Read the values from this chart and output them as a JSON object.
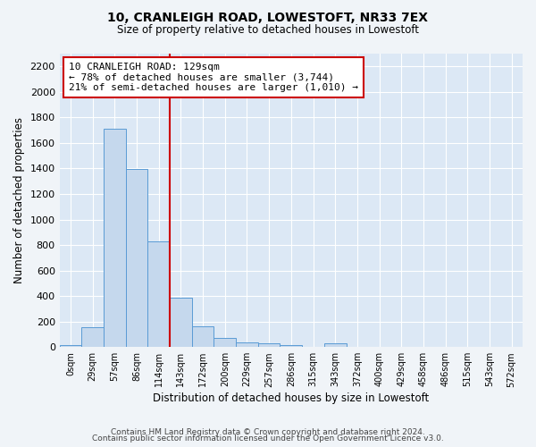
{
  "title": "10, CRANLEIGH ROAD, LOWESTOFT, NR33 7EX",
  "subtitle": "Size of property relative to detached houses in Lowestoft",
  "xlabel": "Distribution of detached houses by size in Lowestoft",
  "ylabel": "Number of detached properties",
  "bar_color": "#c5d8ed",
  "bar_edge_color": "#5a9bd5",
  "background_color": "#dce8f5",
  "grid_color": "#ffffff",
  "fig_bg_color": "#f0f4f8",
  "categories": [
    "0sqm",
    "29sqm",
    "57sqm",
    "86sqm",
    "114sqm",
    "143sqm",
    "172sqm",
    "200sqm",
    "229sqm",
    "257sqm",
    "286sqm",
    "315sqm",
    "343sqm",
    "372sqm",
    "400sqm",
    "429sqm",
    "458sqm",
    "486sqm",
    "515sqm",
    "543sqm",
    "572sqm"
  ],
  "values": [
    18,
    155,
    1710,
    1395,
    830,
    385,
    165,
    70,
    35,
    28,
    18,
    0,
    28,
    0,
    0,
    0,
    0,
    0,
    0,
    0,
    0
  ],
  "ylim": [
    0,
    2300
  ],
  "yticks": [
    0,
    200,
    400,
    600,
    800,
    1000,
    1200,
    1400,
    1600,
    1800,
    2000,
    2200
  ],
  "property_line_x": 4.5,
  "annotation_line1": "10 CRANLEIGH ROAD: 129sqm",
  "annotation_line2": "← 78% of detached houses are smaller (3,744)",
  "annotation_line3": "21% of semi-detached houses are larger (1,010) →",
  "annotation_box_color": "#ffffff",
  "annotation_edge_color": "#cc0000",
  "vline_color": "#cc0000",
  "footer_line1": "Contains HM Land Registry data © Crown copyright and database right 2024.",
  "footer_line2": "Contains public sector information licensed under the Open Government Licence v3.0."
}
